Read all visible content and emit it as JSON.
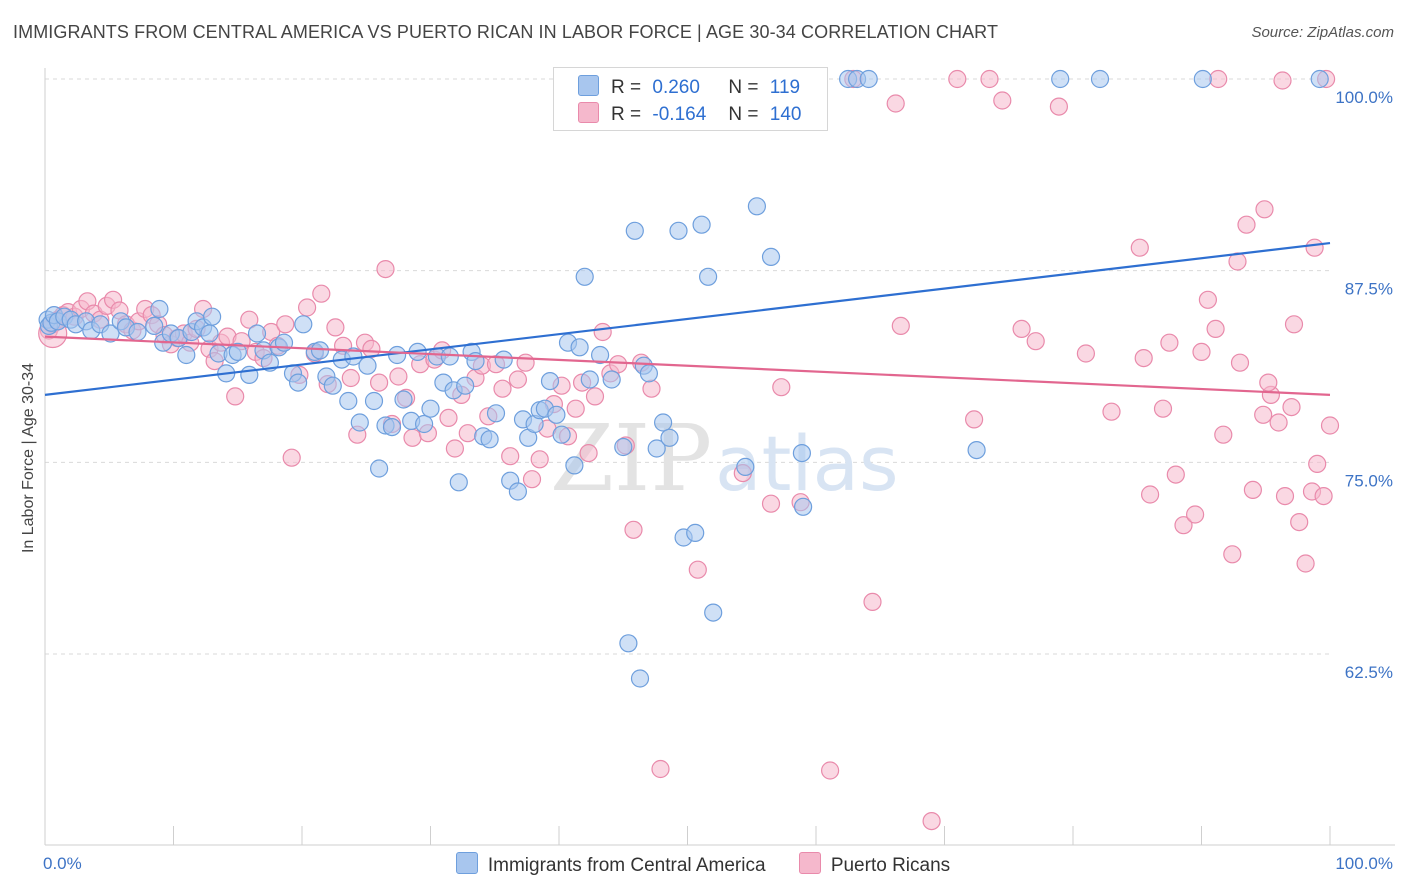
{
  "title": "IMMIGRANTS FROM CENTRAL AMERICA VS PUERTO RICAN IN LABOR FORCE | AGE 30-34 CORRELATION CHART",
  "source": "Source: ZipAtlas.com",
  "colors": {
    "blue_fill": "#a8c6ee",
    "blue_stroke": "#6e9fdd",
    "blue_line": "#2e6fd1",
    "pink_fill": "#f5b8cc",
    "pink_stroke": "#e98aab",
    "pink_line": "#e2668f",
    "tick_text": "#3d73c5",
    "grid": "#d9d9d9"
  },
  "legend": {
    "rows": [
      {
        "r_label": "R =",
        "r_value": "0.260",
        "n_label": "N =",
        "n_value": "119",
        "color": "#a8c6ee",
        "stroke": "#6e9fdd"
      },
      {
        "r_label": "R =",
        "r_value": "-0.164",
        "n_label": "N =",
        "n_value": "140",
        "color": "#f5b8cc",
        "stroke": "#e98aab"
      }
    ]
  },
  "bottom_legend": [
    {
      "label": "Immigrants from Central America",
      "color": "#a8c6ee",
      "stroke": "#6e9fdd"
    },
    {
      "label": "Puerto Ricans",
      "color": "#f5b8cc",
      "stroke": "#e98aab"
    }
  ],
  "watermark": {
    "zip": "ZIP",
    "atlas": "atlas"
  },
  "chart_data": {
    "type": "scatter",
    "ylabel": "In Labor Force | Age 30-34",
    "xlim": [
      0,
      100
    ],
    "ylim": [
      51,
      101
    ],
    "x_tick_labels": [
      "0.0%",
      "100.0%"
    ],
    "y_ticks": [
      {
        "value": 100,
        "label": "100.0%"
      },
      {
        "value": 87.5,
        "label": "87.5%"
      },
      {
        "value": 75,
        "label": "75.0%"
      },
      {
        "value": 62.5,
        "label": "62.5%"
      }
    ],
    "series": [
      {
        "name": "Immigrants from Central America",
        "trend": {
          "x0": 0,
          "y0": 79.4,
          "x1": 100,
          "y1": 89.3
        },
        "points": [
          [
            0.2,
            84.3
          ],
          [
            0.3,
            83.9
          ],
          [
            0.5,
            84.1
          ],
          [
            0.7,
            84.6
          ],
          [
            1.0,
            84.2
          ],
          [
            1.5,
            84.5
          ],
          [
            2.0,
            84.3
          ],
          [
            2.4,
            84.0
          ],
          [
            3.2,
            84.2
          ],
          [
            3.6,
            83.6
          ],
          [
            4.3,
            84.0
          ],
          [
            5.1,
            83.4
          ],
          [
            5.9,
            84.2
          ],
          [
            6.3,
            83.8
          ],
          [
            7.2,
            83.5
          ],
          [
            8.5,
            83.9
          ],
          [
            8.9,
            85.0
          ],
          [
            9.2,
            82.8
          ],
          [
            9.8,
            83.4
          ],
          [
            10.4,
            83.1
          ],
          [
            11.0,
            82.0
          ],
          [
            11.4,
            83.5
          ],
          [
            11.8,
            84.2
          ],
          [
            12.3,
            83.8
          ],
          [
            12.8,
            83.4
          ],
          [
            13.0,
            84.5
          ],
          [
            13.5,
            82.1
          ],
          [
            14.1,
            80.8
          ],
          [
            14.6,
            82.0
          ],
          [
            15.0,
            82.2
          ],
          [
            15.9,
            80.7
          ],
          [
            16.5,
            83.4
          ],
          [
            17.0,
            82.3
          ],
          [
            17.5,
            81.5
          ],
          [
            18.2,
            82.5
          ],
          [
            18.6,
            82.8
          ],
          [
            19.3,
            80.8
          ],
          [
            19.7,
            80.2
          ],
          [
            20.1,
            84.0
          ],
          [
            21.0,
            82.2
          ],
          [
            21.4,
            82.3
          ],
          [
            21.9,
            80.6
          ],
          [
            22.4,
            80.0
          ],
          [
            23.1,
            81.7
          ],
          [
            23.6,
            79.0
          ],
          [
            24.0,
            81.9
          ],
          [
            24.5,
            77.6
          ],
          [
            25.1,
            81.3
          ],
          [
            25.6,
            79.0
          ],
          [
            26.0,
            74.6
          ],
          [
            26.5,
            77.4
          ],
          [
            27.0,
            77.3
          ],
          [
            27.4,
            82.0
          ],
          [
            27.9,
            79.1
          ],
          [
            28.5,
            77.7
          ],
          [
            29.0,
            82.2
          ],
          [
            29.5,
            77.5
          ],
          [
            30.0,
            78.5
          ],
          [
            30.5,
            81.9
          ],
          [
            31.0,
            80.2
          ],
          [
            31.5,
            81.9
          ],
          [
            31.8,
            79.7
          ],
          [
            32.2,
            73.7
          ],
          [
            32.7,
            80.0
          ],
          [
            33.2,
            82.2
          ],
          [
            33.5,
            81.6
          ],
          [
            34.1,
            76.7
          ],
          [
            34.6,
            76.5
          ],
          [
            35.1,
            78.2
          ],
          [
            35.7,
            81.7
          ],
          [
            36.2,
            73.8
          ],
          [
            36.8,
            73.1
          ],
          [
            37.2,
            77.8
          ],
          [
            37.6,
            76.6
          ],
          [
            38.1,
            77.5
          ],
          [
            38.5,
            78.4
          ],
          [
            38.9,
            78.5
          ],
          [
            39.3,
            80.3
          ],
          [
            39.8,
            78.1
          ],
          [
            40.2,
            76.8
          ],
          [
            40.7,
            82.8
          ],
          [
            41.2,
            74.8
          ],
          [
            41.6,
            82.5
          ],
          [
            42.0,
            87.1
          ],
          [
            42.4,
            80.4
          ],
          [
            43.2,
            82.0
          ],
          [
            44.1,
            80.4
          ],
          [
            45.0,
            76.0
          ],
          [
            45.4,
            63.2
          ],
          [
            45.9,
            90.1
          ],
          [
            46.3,
            60.9
          ],
          [
            46.6,
            81.3
          ],
          [
            47.0,
            80.8
          ],
          [
            47.6,
            75.9
          ],
          [
            48.1,
            77.6
          ],
          [
            48.6,
            76.6
          ],
          [
            49.3,
            90.1
          ],
          [
            49.7,
            70.1
          ],
          [
            50.6,
            70.4
          ],
          [
            51.1,
            90.5
          ],
          [
            51.6,
            87.1
          ],
          [
            52.0,
            65.2
          ],
          [
            54.5,
            74.7
          ],
          [
            55.4,
            91.7
          ],
          [
            56.5,
            88.4
          ],
          [
            58.9,
            75.6
          ],
          [
            59.0,
            72.1
          ],
          [
            62.5,
            100.0
          ],
          [
            63.2,
            100.0
          ],
          [
            64.1,
            100.0
          ],
          [
            72.5,
            75.8
          ],
          [
            79.0,
            100.0
          ],
          [
            82.1,
            100.0
          ],
          [
            90.1,
            100.0
          ],
          [
            99.2,
            100.0
          ]
        ]
      },
      {
        "name": "Puerto Ricans",
        "trend": {
          "x0": 0,
          "y0": 83.2,
          "x1": 100,
          "y1": 79.4
        },
        "points": [
          [
            0.3,
            83.6
          ],
          [
            0.6,
            84.0
          ],
          [
            1.0,
            84.3
          ],
          [
            1.4,
            84.6
          ],
          [
            1.8,
            84.8
          ],
          [
            2.3,
            84.5
          ],
          [
            2.8,
            85.0
          ],
          [
            3.3,
            85.5
          ],
          [
            3.8,
            84.7
          ],
          [
            4.3,
            84.3
          ],
          [
            4.8,
            85.2
          ],
          [
            5.3,
            85.6
          ],
          [
            5.8,
            84.9
          ],
          [
            6.3,
            84.0
          ],
          [
            6.8,
            83.6
          ],
          [
            7.3,
            84.2
          ],
          [
            7.8,
            85.0
          ],
          [
            8.3,
            84.6
          ],
          [
            8.8,
            84.0
          ],
          [
            9.3,
            83.3
          ],
          [
            9.8,
            82.7
          ],
          [
            10.3,
            83.1
          ],
          [
            10.8,
            83.4
          ],
          [
            11.3,
            82.8
          ],
          [
            11.8,
            83.7
          ],
          [
            12.3,
            85.0
          ],
          [
            12.8,
            82.4
          ],
          [
            13.2,
            81.6
          ],
          [
            13.7,
            82.8
          ],
          [
            14.2,
            83.2
          ],
          [
            14.8,
            79.3
          ],
          [
            15.3,
            82.9
          ],
          [
            15.9,
            84.3
          ],
          [
            16.4,
            82.2
          ],
          [
            17.0,
            81.8
          ],
          [
            17.6,
            83.5
          ],
          [
            18.1,
            82.6
          ],
          [
            18.7,
            84.0
          ],
          [
            19.2,
            75.3
          ],
          [
            19.8,
            80.7
          ],
          [
            20.4,
            85.1
          ],
          [
            21.0,
            82.1
          ],
          [
            21.5,
            86.0
          ],
          [
            22.0,
            80.1
          ],
          [
            22.6,
            83.8
          ],
          [
            23.2,
            82.6
          ],
          [
            23.8,
            80.5
          ],
          [
            24.3,
            76.8
          ],
          [
            24.9,
            82.8
          ],
          [
            25.4,
            82.4
          ],
          [
            26.0,
            80.2
          ],
          [
            26.5,
            87.6
          ],
          [
            27.0,
            77.5
          ],
          [
            27.5,
            80.6
          ],
          [
            28.1,
            79.2
          ],
          [
            28.6,
            76.6
          ],
          [
            29.2,
            81.4
          ],
          [
            29.8,
            76.9
          ],
          [
            30.3,
            81.7
          ],
          [
            30.9,
            82.3
          ],
          [
            31.4,
            77.9
          ],
          [
            31.9,
            75.9
          ],
          [
            32.4,
            79.4
          ],
          [
            32.9,
            76.9
          ],
          [
            33.5,
            80.5
          ],
          [
            34.0,
            81.3
          ],
          [
            34.5,
            78.0
          ],
          [
            35.1,
            81.4
          ],
          [
            35.6,
            79.8
          ],
          [
            36.2,
            75.4
          ],
          [
            36.8,
            80.4
          ],
          [
            37.4,
            81.5
          ],
          [
            37.9,
            73.9
          ],
          [
            38.5,
            75.2
          ],
          [
            39.1,
            77.2
          ],
          [
            39.6,
            78.8
          ],
          [
            40.2,
            80.0
          ],
          [
            40.7,
            76.7
          ],
          [
            41.3,
            78.5
          ],
          [
            41.8,
            80.2
          ],
          [
            42.3,
            75.6
          ],
          [
            42.8,
            79.3
          ],
          [
            43.4,
            83.5
          ],
          [
            44.0,
            80.8
          ],
          [
            44.6,
            81.4
          ],
          [
            45.2,
            76.1
          ],
          [
            45.8,
            70.6
          ],
          [
            46.4,
            81.5
          ],
          [
            47.2,
            79.8
          ],
          [
            47.9,
            55.0
          ],
          [
            48.4,
            100.0
          ],
          [
            49.6,
            100.0
          ],
          [
            50.8,
            68.0
          ],
          [
            53.0,
            100.0
          ],
          [
            54.3,
            74.3
          ],
          [
            55.0,
            100.0
          ],
          [
            56.5,
            72.3
          ],
          [
            57.3,
            79.9
          ],
          [
            58.1,
            100.0
          ],
          [
            58.8,
            72.4
          ],
          [
            61.1,
            54.9
          ],
          [
            62.9,
            100.0
          ],
          [
            64.4,
            65.9
          ],
          [
            66.2,
            98.4
          ],
          [
            66.6,
            83.9
          ],
          [
            69.0,
            51.6
          ],
          [
            71.0,
            100.0
          ],
          [
            72.3,
            77.8
          ],
          [
            73.5,
            100.0
          ],
          [
            74.5,
            98.6
          ],
          [
            76.0,
            83.7
          ],
          [
            77.1,
            82.9
          ],
          [
            78.9,
            98.2
          ],
          [
            81.0,
            82.1
          ],
          [
            83.0,
            78.3
          ],
          [
            85.2,
            89.0
          ],
          [
            85.5,
            81.8
          ],
          [
            86.0,
            72.9
          ],
          [
            87.0,
            78.5
          ],
          [
            87.5,
            82.8
          ],
          [
            88.0,
            74.2
          ],
          [
            88.6,
            70.9
          ],
          [
            89.5,
            71.6
          ],
          [
            90.0,
            82.2
          ],
          [
            90.5,
            85.6
          ],
          [
            91.1,
            83.7
          ],
          [
            91.7,
            76.8
          ],
          [
            92.4,
            69.0
          ],
          [
            93.0,
            81.5
          ],
          [
            93.5,
            90.5
          ],
          [
            94.0,
            73.2
          ],
          [
            94.8,
            78.1
          ],
          [
            95.4,
            79.4
          ],
          [
            96.0,
            77.6
          ],
          [
            96.5,
            72.8
          ],
          [
            97.0,
            78.6
          ],
          [
            97.6,
            71.1
          ],
          [
            98.1,
            68.4
          ],
          [
            98.6,
            73.1
          ],
          [
            99.0,
            74.9
          ],
          [
            99.5,
            72.8
          ],
          [
            100.0,
            77.4
          ],
          [
            91.3,
            100.0
          ],
          [
            94.9,
            91.5
          ],
          [
            95.2,
            80.2
          ],
          [
            96.3,
            99.9
          ],
          [
            97.2,
            84.0
          ],
          [
            98.8,
            89.0
          ],
          [
            99.7,
            100.0
          ],
          [
            92.8,
            88.1
          ]
        ]
      }
    ]
  }
}
